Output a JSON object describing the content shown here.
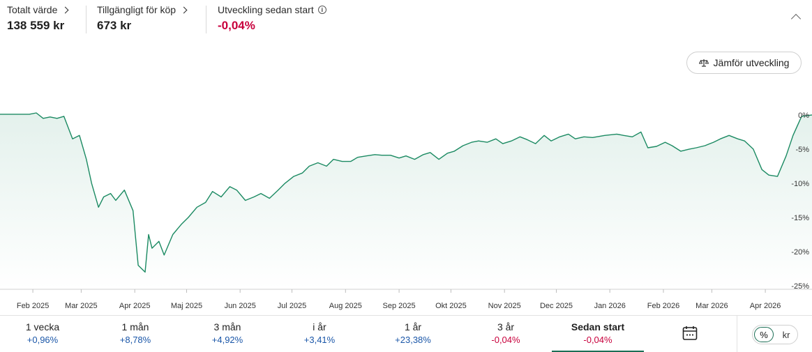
{
  "summary": {
    "total": {
      "label": "Totalt värde",
      "value": "138 559 kr"
    },
    "available": {
      "label": "Tillgängligt för köp",
      "value": "673 kr"
    },
    "development": {
      "label": "Utveckling sedan start",
      "value": "-0,04%"
    }
  },
  "compare_button": {
    "label": "Jämför utveckling",
    "icon": "scale-icon"
  },
  "chart_data": {
    "type": "area",
    "title": "",
    "xlabel": "",
    "ylabel": "",
    "x_ticks": [
      "Feb 2025",
      "Mar 2025",
      "Apr 2025",
      "Maj 2025",
      "Jun 2025",
      "Jul 2025",
      "Aug 2025",
      "Sep 2025",
      "Okt 2025",
      "Nov 2025",
      "Dec 2025",
      "Jan 2026",
      "Feb 2026",
      "Mar 2026",
      "Apr 2026"
    ],
    "y_ticks": [
      0,
      -5,
      -10,
      -15,
      -20,
      -25
    ],
    "y_tick_labels": [
      "0%",
      "-5%",
      "-10%",
      "-15%",
      "-20%",
      "-25%"
    ],
    "ylim": [
      -25,
      0.5
    ],
    "xlim": [
      "2025-01-13",
      "2026-04-28"
    ],
    "grid": false,
    "line_color": "#1b8a62",
    "series": [
      {
        "x": [
          "2025-01-13",
          "2025-01-20",
          "2025-01-27",
          "2025-01-30",
          "2025-02-03",
          "2025-02-07",
          "2025-02-11",
          "2025-02-15",
          "2025-02-19",
          "2025-02-24",
          "2025-02-28",
          "2025-03-04",
          "2025-03-07",
          "2025-03-11",
          "2025-03-14",
          "2025-03-18",
          "2025-03-21",
          "2025-03-26",
          "2025-03-31",
          "2025-04-03",
          "2025-04-07",
          "2025-04-09",
          "2025-04-11",
          "2025-04-15",
          "2025-04-18",
          "2025-04-23",
          "2025-04-28",
          "2025-05-02",
          "2025-05-07",
          "2025-05-12",
          "2025-05-16",
          "2025-05-21",
          "2025-05-26",
          "2025-05-30",
          "2025-06-04",
          "2025-06-09",
          "2025-06-13",
          "2025-06-18",
          "2025-06-23",
          "2025-06-27",
          "2025-07-02",
          "2025-07-07",
          "2025-07-11",
          "2025-07-16",
          "2025-07-21",
          "2025-07-25",
          "2025-07-30",
          "2025-08-04",
          "2025-08-08",
          "2025-08-13",
          "2025-08-18",
          "2025-08-22",
          "2025-08-27",
          "2025-09-01",
          "2025-09-05",
          "2025-09-10",
          "2025-09-15",
          "2025-09-19",
          "2025-09-24",
          "2025-09-29",
          "2025-10-03",
          "2025-10-08",
          "2025-10-13",
          "2025-10-17",
          "2025-10-22",
          "2025-10-27",
          "2025-10-31",
          "2025-11-05",
          "2025-11-10",
          "2025-11-14",
          "2025-11-19",
          "2025-11-24",
          "2025-11-28",
          "2025-12-03",
          "2025-12-08",
          "2025-12-12",
          "2025-12-17",
          "2025-12-22",
          "2025-12-29",
          "2026-01-05",
          "2026-01-09",
          "2026-01-14",
          "2026-01-19",
          "2026-01-23",
          "2026-01-28",
          "2026-02-02",
          "2026-02-06",
          "2026-02-11",
          "2026-02-16",
          "2026-02-20",
          "2026-02-25",
          "2026-03-02",
          "2026-03-06",
          "2026-03-11",
          "2026-03-16",
          "2026-03-20",
          "2026-03-25",
          "2026-03-30",
          "2026-04-03",
          "2026-04-08",
          "2026-04-13",
          "2026-04-17",
          "2026-04-22",
          "2026-04-28"
        ],
        "y": [
          0.1,
          0.1,
          0.1,
          0.1,
          0.3,
          -0.5,
          -0.3,
          -0.5,
          -0.2,
          -3.5,
          -3.0,
          -6.5,
          -10.0,
          -13.5,
          -12.0,
          -11.5,
          -12.5,
          -11.0,
          -14.0,
          -22.0,
          -23.0,
          -17.5,
          -19.5,
          -18.5,
          -20.5,
          -17.5,
          -16.0,
          -15.0,
          -13.5,
          -12.8,
          -11.2,
          -12.0,
          -10.5,
          -11.0,
          -12.5,
          -12.0,
          -11.5,
          -12.2,
          -11.0,
          -10.0,
          -9.0,
          -8.5,
          -7.5,
          -7.0,
          -7.5,
          -6.5,
          -6.8,
          -6.8,
          -6.2,
          -6.0,
          -5.8,
          -5.9,
          -5.9,
          -6.3,
          -6.0,
          -6.5,
          -5.8,
          -5.5,
          -6.5,
          -5.6,
          -5.3,
          -4.5,
          -4.0,
          -3.8,
          -4.0,
          -3.5,
          -4.2,
          -3.8,
          -3.2,
          -3.6,
          -4.2,
          -3.0,
          -3.8,
          -3.2,
          -2.8,
          -3.5,
          -3.2,
          -3.3,
          -3.0,
          -2.8,
          -3.0,
          -3.2,
          -2.5,
          -4.8,
          -4.6,
          -4.0,
          -4.5,
          -5.3,
          -5.0,
          -4.8,
          -4.5,
          -4.0,
          -3.5,
          -3.0,
          -3.5,
          -3.8,
          -5.0,
          -8.0,
          -8.8,
          -9.0,
          -6.0,
          -3.0,
          -0.2,
          0.0
        ]
      }
    ]
  },
  "periods": [
    {
      "label": "1 vecka",
      "value": "+0,96%",
      "tone": "pos"
    },
    {
      "label": "1 mån",
      "value": "+8,78%",
      "tone": "pos"
    },
    {
      "label": "3 mån",
      "value": "+4,92%",
      "tone": "pos"
    },
    {
      "label": "i år",
      "value": "+3,41%",
      "tone": "pos"
    },
    {
      "label": "1 år",
      "value": "+23,38%",
      "tone": "pos"
    },
    {
      "label": "3 år",
      "value": "-0,04%",
      "tone": "neg"
    },
    {
      "label": "Sedan start",
      "value": "-0,04%",
      "tone": "neg",
      "active": true
    }
  ],
  "calendar_button": {
    "icon": "calendar-icon"
  },
  "unit_toggle": {
    "percent": "%",
    "currency": "kr",
    "selected": "%"
  },
  "colors": {
    "accent": "#1b6e55",
    "negative": "#c8003c",
    "positive": "#1a56a8"
  }
}
